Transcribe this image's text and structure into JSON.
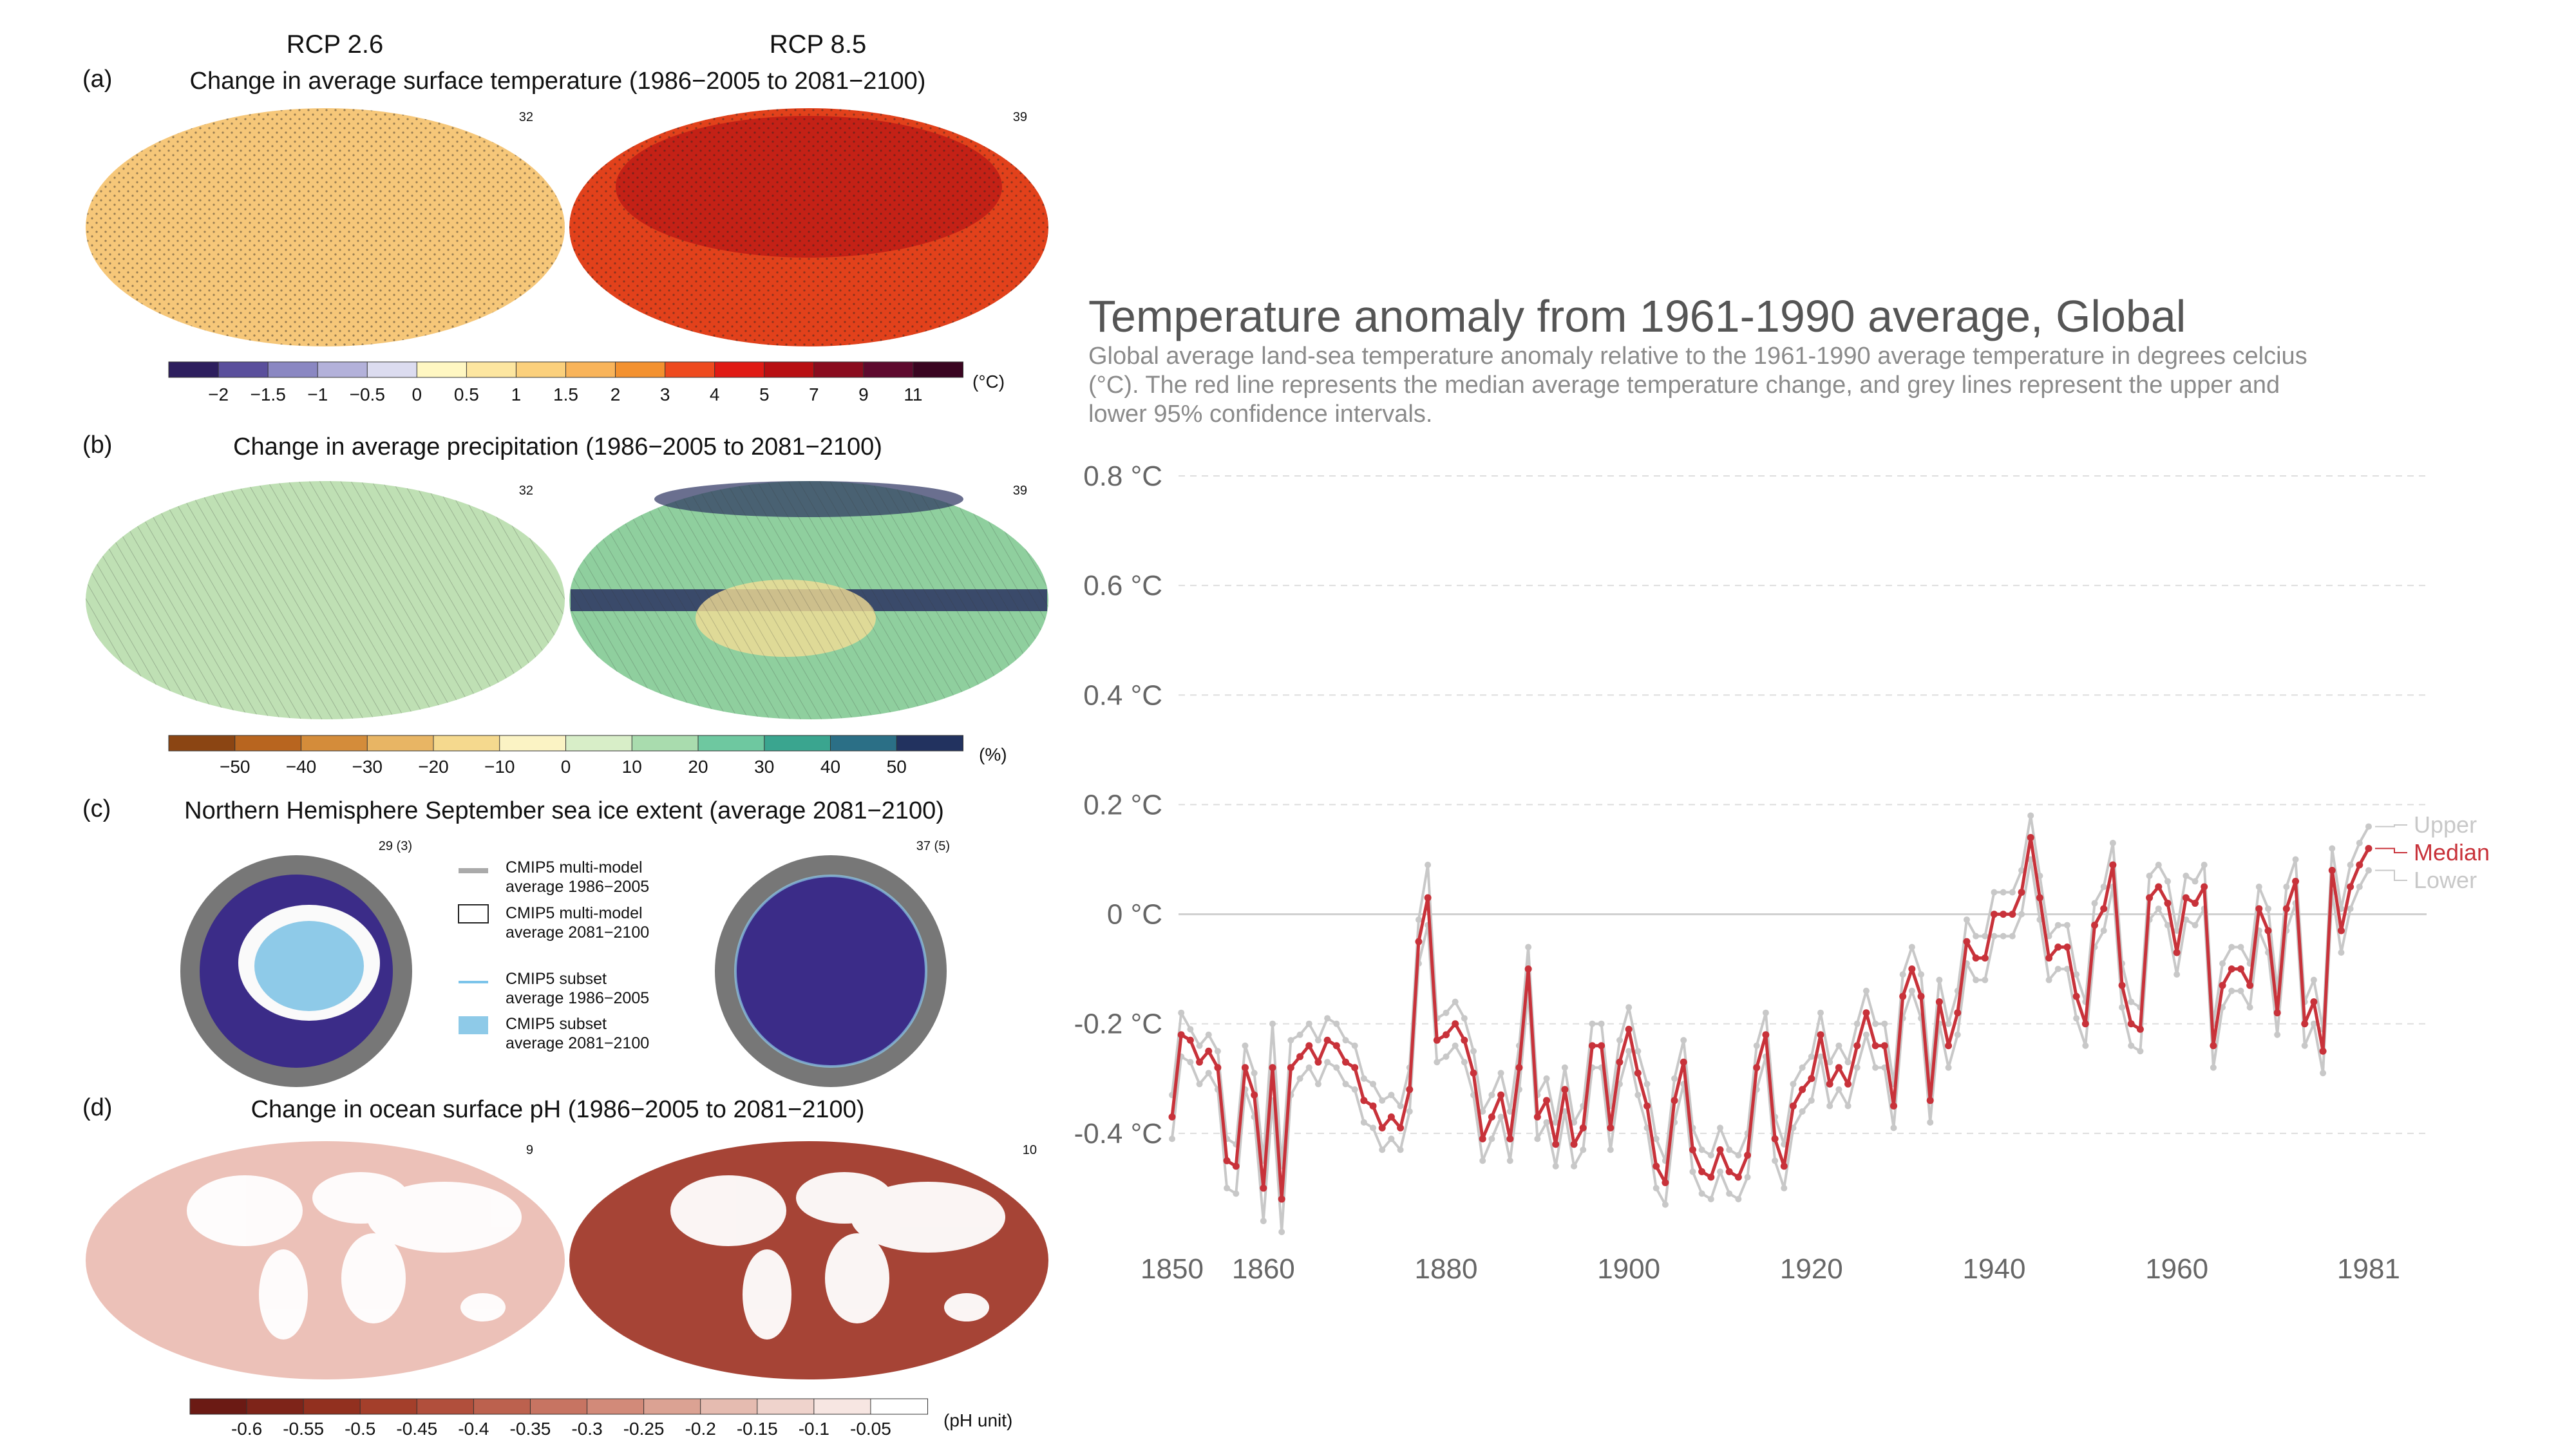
{
  "left_figure": {
    "scenarios": [
      "RCP 2.6",
      "RCP 8.5"
    ],
    "panels": [
      {
        "letter": "(a)",
        "title": "Change in average surface temperature (1986−2005 to 2081−2100)",
        "model_counts": [
          "32",
          "39"
        ],
        "colorbar": {
          "ticks": [
            "−2",
            "−1.5",
            "−1",
            "−0.5",
            "0",
            "0.5",
            "1",
            "1.5",
            "2",
            "3",
            "4",
            "5",
            "7",
            "9",
            "11"
          ],
          "unit": "(°C)",
          "colors": [
            "#2d1e5e",
            "#5a4f9c",
            "#8a87c2",
            "#b3b1da",
            "#dcdcf0",
            "#fff7c2",
            "#fde6a0",
            "#fbd07c",
            "#f9b45a",
            "#f3912f",
            "#ee4a1e",
            "#e01a14",
            "#b80f12",
            "#8a0c1e",
            "#5e0a2e",
            "#3a0521"
          ]
        },
        "map_colors": {
          "rcp26": "#f6c779",
          "rcp85": "#e2411b"
        }
      },
      {
        "letter": "(b)",
        "title": "Change in average precipitation (1986−2005 to 2081−2100)",
        "model_counts": [
          "32",
          "39"
        ],
        "colorbar": {
          "ticks": [
            "−50",
            "−40",
            "−30",
            "−20",
            "−10",
            "0",
            "10",
            "20",
            "30",
            "40",
            "50"
          ],
          "unit": "(%)",
          "colors": [
            "#8b4513",
            "#b8651f",
            "#d48c3a",
            "#e8b564",
            "#f5d98e",
            "#fbf3c4",
            "#d8eec8",
            "#a9dcae",
            "#6ec8a0",
            "#3aa58f",
            "#2b6f86",
            "#22325f"
          ]
        },
        "map_colors": {
          "rcp26": "#bfe0b4",
          "rcp85": "#8fcf9e"
        }
      },
      {
        "letter": "(c)",
        "title": "Northern Hemisphere September sea ice extent (average 2081−2100)",
        "model_counts": [
          "29 (3)",
          "37 (5)"
        ],
        "legend": [
          {
            "line1": "CMIP5 multi-model",
            "line2": "average 1986−2005"
          },
          {
            "line1": "CMIP5 multi-model",
            "line2": "average 2081−2100"
          },
          {
            "line1": "CMIP5 subset",
            "line2": "average 1986−2005"
          },
          {
            "line1": "CMIP5 subset",
            "line2": "average 2081−2100"
          }
        ]
      },
      {
        "letter": "(d)",
        "title": "Change in ocean surface pH (1986−2005 to 2081−2100)",
        "model_counts": [
          "9",
          "10"
        ],
        "colorbar": {
          "ticks": [
            "-0.6",
            "-0.55",
            "-0.5",
            "-0.45",
            "-0.4",
            "-0.35",
            "-0.3",
            "-0.25",
            "-0.2",
            "-0.15",
            "-0.1",
            "-0.05"
          ],
          "unit": "(pH unit)",
          "colors": [
            "#6b1a14",
            "#7e2419",
            "#92301f",
            "#a43f2b",
            "#b14f3c",
            "#bc614e",
            "#c77462",
            "#d28a79",
            "#dba293",
            "#e5bbb0",
            "#efd3cc",
            "#f7e6e2",
            "#ffffff"
          ]
        },
        "map_colors": {
          "rcp26": "#ecc1b8",
          "rcp85": "#a64436"
        }
      }
    ]
  },
  "chart_data": {
    "type": "line",
    "title": "Temperature anomaly from 1961-1990 average, Global",
    "subtitle_lines": [
      "Global average land-sea temperature anomaly relative to the 1961-1990 average temperature in degrees celcius",
      "(°C). The red line represents the median average temperature change, and grey lines represent the upper and",
      "lower 95% confidence intervals."
    ],
    "x_ticks": [
      "1850",
      "1860",
      "1880",
      "1900",
      "1920",
      "1940",
      "1960",
      "1981"
    ],
    "y_ticks": [
      "0.8 °C",
      "0.6 °C",
      "0.4 °C",
      "0.2 °C",
      "0 °C",
      "-0.2 °C",
      "-0.4 °C"
    ],
    "xlim": [
      1850,
      1981
    ],
    "ylim": [
      -0.6,
      0.8
    ],
    "grid": true,
    "x": [
      1850,
      1851,
      1852,
      1853,
      1854,
      1855,
      1856,
      1857,
      1858,
      1859,
      1860,
      1861,
      1862,
      1863,
      1864,
      1865,
      1866,
      1867,
      1868,
      1869,
      1870,
      1871,
      1872,
      1873,
      1874,
      1875,
      1876,
      1877,
      1878,
      1879,
      1880,
      1881,
      1882,
      1883,
      1884,
      1885,
      1886,
      1887,
      1888,
      1889,
      1890,
      1891,
      1892,
      1893,
      1894,
      1895,
      1896,
      1897,
      1898,
      1899,
      1900,
      1901,
      1902,
      1903,
      1904,
      1905,
      1906,
      1907,
      1908,
      1909,
      1910,
      1911,
      1912,
      1913,
      1914,
      1915,
      1916,
      1917,
      1918,
      1919,
      1920,
      1921,
      1922,
      1923,
      1924,
      1925,
      1926,
      1927,
      1928,
      1929,
      1930,
      1931,
      1932,
      1933,
      1934,
      1935,
      1936,
      1937,
      1938,
      1939,
      1940,
      1941,
      1942,
      1943,
      1944,
      1945,
      1946,
      1947,
      1948,
      1949,
      1950,
      1951,
      1952,
      1953,
      1954,
      1955,
      1956,
      1957,
      1958,
      1959,
      1960,
      1961,
      1962,
      1963,
      1964,
      1965,
      1966,
      1967,
      1968,
      1969,
      1970,
      1971,
      1972,
      1973,
      1974,
      1975,
      1976,
      1977,
      1978,
      1979,
      1980,
      1981
    ],
    "series": [
      {
        "name": "Upper",
        "color": "#c8c8c8",
        "values": [
          -0.33,
          -0.18,
          -0.21,
          -0.24,
          -0.22,
          -0.25,
          -0.41,
          -0.42,
          -0.24,
          -0.29,
          -0.45,
          -0.2,
          -0.46,
          -0.23,
          -0.22,
          -0.2,
          -0.23,
          -0.19,
          -0.2,
          -0.23,
          -0.24,
          -0.3,
          -0.31,
          -0.34,
          -0.33,
          -0.35,
          -0.28,
          -0.01,
          0.09,
          -0.19,
          -0.18,
          -0.16,
          -0.19,
          -0.25,
          -0.36,
          -0.33,
          -0.29,
          -0.36,
          -0.24,
          -0.06,
          -0.33,
          -0.3,
          -0.38,
          -0.28,
          -0.38,
          -0.35,
          -0.2,
          -0.2,
          -0.35,
          -0.23,
          -0.17,
          -0.25,
          -0.31,
          -0.41,
          -0.45,
          -0.3,
          -0.23,
          -0.39,
          -0.43,
          -0.44,
          -0.39,
          -0.43,
          -0.44,
          -0.4,
          -0.24,
          -0.18,
          -0.37,
          -0.42,
          -0.31,
          -0.28,
          -0.26,
          -0.18,
          -0.27,
          -0.24,
          -0.27,
          -0.2,
          -0.14,
          -0.2,
          -0.2,
          -0.31,
          -0.11,
          -0.06,
          -0.11,
          -0.3,
          -0.12,
          -0.2,
          -0.14,
          -0.01,
          -0.04,
          -0.04,
          0.04,
          0.04,
          0.04,
          0.08,
          0.18,
          0.07,
          -0.04,
          -0.02,
          -0.02,
          -0.11,
          -0.16,
          0.02,
          0.05,
          0.13,
          -0.09,
          -0.16,
          -0.17,
          0.07,
          0.09,
          0.06,
          -0.03,
          0.07,
          0.06,
          0.09,
          -0.2,
          -0.09,
          -0.06,
          -0.06,
          -0.09,
          0.05,
          0.01,
          -0.14,
          0.05,
          0.1,
          -0.16,
          -0.12,
          -0.21,
          0.12,
          0.01,
          0.09,
          0.13,
          0.16
        ]
      },
      {
        "name": "Median",
        "color": "#c8323a",
        "values": [
          -0.37,
          -0.22,
          -0.23,
          -0.27,
          -0.25,
          -0.28,
          -0.45,
          -0.46,
          -0.28,
          -0.33,
          -0.5,
          -0.28,
          -0.52,
          -0.28,
          -0.26,
          -0.24,
          -0.27,
          -0.23,
          -0.24,
          -0.27,
          -0.28,
          -0.34,
          -0.35,
          -0.39,
          -0.37,
          -0.39,
          -0.32,
          -0.05,
          0.03,
          -0.23,
          -0.22,
          -0.2,
          -0.23,
          -0.29,
          -0.41,
          -0.37,
          -0.33,
          -0.41,
          -0.28,
          -0.1,
          -0.37,
          -0.34,
          -0.42,
          -0.32,
          -0.42,
          -0.39,
          -0.24,
          -0.24,
          -0.39,
          -0.27,
          -0.21,
          -0.29,
          -0.35,
          -0.46,
          -0.49,
          -0.34,
          -0.27,
          -0.43,
          -0.47,
          -0.48,
          -0.43,
          -0.47,
          -0.48,
          -0.44,
          -0.28,
          -0.22,
          -0.41,
          -0.46,
          -0.35,
          -0.32,
          -0.3,
          -0.22,
          -0.31,
          -0.28,
          -0.31,
          -0.24,
          -0.18,
          -0.24,
          -0.24,
          -0.35,
          -0.15,
          -0.1,
          -0.15,
          -0.34,
          -0.16,
          -0.24,
          -0.18,
          -0.05,
          -0.08,
          -0.08,
          0.0,
          0.0,
          0.0,
          0.04,
          0.14,
          0.03,
          -0.08,
          -0.06,
          -0.06,
          -0.15,
          -0.2,
          -0.02,
          0.01,
          0.09,
          -0.13,
          -0.2,
          -0.21,
          0.03,
          0.05,
          0.02,
          -0.07,
          0.03,
          0.02,
          0.05,
          -0.24,
          -0.13,
          -0.1,
          -0.1,
          -0.13,
          0.01,
          -0.03,
          -0.18,
          0.01,
          0.06,
          -0.2,
          -0.16,
          -0.25,
          0.08,
          -0.03,
          0.05,
          0.09,
          0.12
        ]
      },
      {
        "name": "Lower",
        "color": "#c8c8c8",
        "values": [
          -0.41,
          -0.26,
          -0.27,
          -0.31,
          -0.29,
          -0.32,
          -0.5,
          -0.51,
          -0.32,
          -0.37,
          -0.56,
          -0.34,
          -0.58,
          -0.33,
          -0.3,
          -0.28,
          -0.31,
          -0.27,
          -0.28,
          -0.31,
          -0.32,
          -0.38,
          -0.39,
          -0.43,
          -0.41,
          -0.43,
          -0.36,
          -0.09,
          -0.02,
          -0.27,
          -0.26,
          -0.24,
          -0.27,
          -0.33,
          -0.45,
          -0.41,
          -0.37,
          -0.45,
          -0.32,
          -0.14,
          -0.41,
          -0.38,
          -0.46,
          -0.36,
          -0.46,
          -0.43,
          -0.28,
          -0.28,
          -0.43,
          -0.31,
          -0.25,
          -0.33,
          -0.39,
          -0.5,
          -0.53,
          -0.38,
          -0.31,
          -0.47,
          -0.51,
          -0.52,
          -0.47,
          -0.51,
          -0.52,
          -0.48,
          -0.32,
          -0.26,
          -0.45,
          -0.5,
          -0.39,
          -0.36,
          -0.34,
          -0.26,
          -0.35,
          -0.32,
          -0.35,
          -0.28,
          -0.22,
          -0.28,
          -0.28,
          -0.39,
          -0.19,
          -0.14,
          -0.19,
          -0.38,
          -0.2,
          -0.28,
          -0.22,
          -0.09,
          -0.12,
          -0.12,
          -0.04,
          -0.04,
          -0.04,
          0.0,
          0.1,
          -0.01,
          -0.12,
          -0.1,
          -0.1,
          -0.19,
          -0.24,
          -0.06,
          -0.03,
          0.05,
          -0.17,
          -0.24,
          -0.25,
          -0.01,
          0.01,
          -0.02,
          -0.11,
          -0.01,
          -0.02,
          0.01,
          -0.28,
          -0.17,
          -0.14,
          -0.14,
          -0.17,
          -0.03,
          -0.07,
          -0.22,
          -0.03,
          0.02,
          -0.24,
          -0.2,
          -0.29,
          0.04,
          -0.07,
          0.01,
          0.05,
          0.08
        ]
      }
    ],
    "end_labels": [
      "Upper",
      "Median",
      "Lower"
    ]
  }
}
